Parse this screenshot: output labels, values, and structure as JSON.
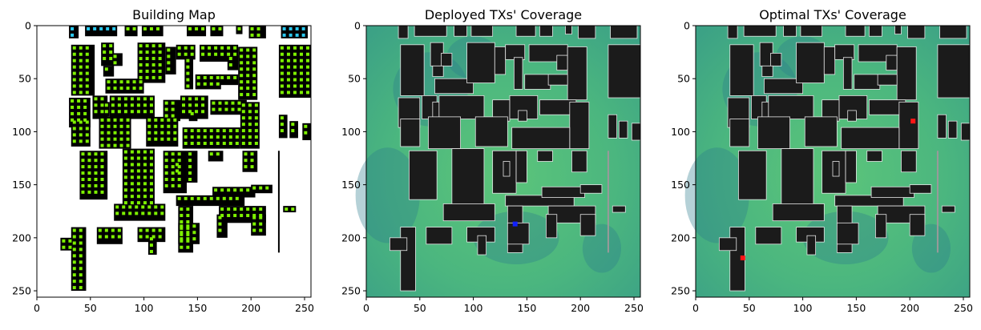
{
  "figure": {
    "panels": [
      {
        "id": "building",
        "title": "Building Map"
      },
      {
        "id": "deployed",
        "title": "Deployed TXs' Coverage"
      },
      {
        "id": "optimal",
        "title": "Optimal TXs' Coverage"
      }
    ]
  },
  "colors": {
    "building": "#000000",
    "window": "#7df000",
    "window_blue": "#2bc9f0",
    "coverage_base": "#4ab87a",
    "coverage_dark": "#2a7a8c",
    "building_dark": "#1b1b1b",
    "edge": "#e6e6e6",
    "tx_deployed": "#1020ff",
    "tx_optimal": "#ff1515"
  },
  "chart_data": [
    {
      "type": "heatmap",
      "title": "Building Map",
      "xlim": [
        0,
        255
      ],
      "ylim": [
        255,
        0
      ],
      "xticks": [
        0,
        50,
        100,
        150,
        200,
        250
      ],
      "yticks": [
        0,
        50,
        100,
        150,
        200,
        250
      ],
      "grid": false
    },
    {
      "type": "heatmap",
      "title": "Deployed TXs' Coverage",
      "xlim": [
        0,
        255
      ],
      "ylim": [
        255,
        0
      ],
      "xticks": [
        0,
        50,
        100,
        150,
        200,
        250
      ],
      "yticks": [
        0,
        50,
        100,
        150,
        200,
        250
      ],
      "grid": false,
      "transmitters": [
        {
          "x": 139,
          "y": 187
        }
      ]
    },
    {
      "type": "heatmap",
      "title": "Optimal TXs' Coverage",
      "xlim": [
        0,
        255
      ],
      "ylim": [
        255,
        0
      ],
      "xticks": [
        0,
        50,
        100,
        150,
        200,
        250
      ],
      "yticks": [
        0,
        50,
        100,
        150,
        200,
        250
      ],
      "grid": false,
      "transmitters": [
        {
          "x": 44,
          "y": 219
        },
        {
          "x": 203,
          "y": 90
        }
      ]
    }
  ]
}
